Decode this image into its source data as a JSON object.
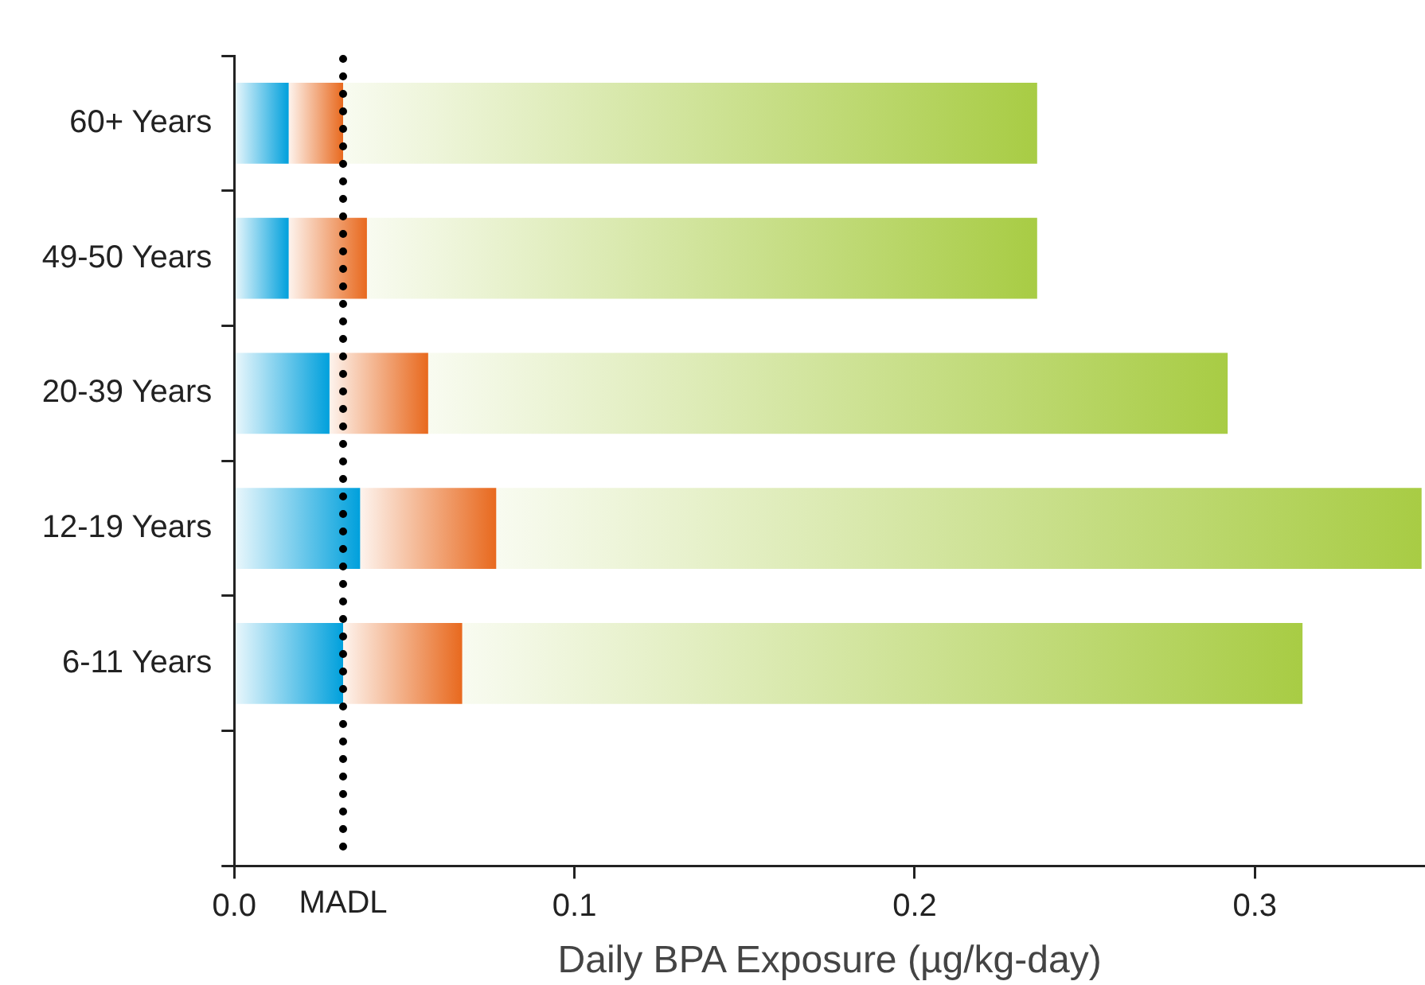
{
  "chart_data": {
    "type": "bar",
    "orientation": "horizontal",
    "stacked": true,
    "categories": [
      "60+ Years",
      "49-50 Years",
      "20-39 Years",
      "12-19 Years",
      "6-11 Years",
      null
    ],
    "series": [
      {
        "color": "#00a0dc",
        "values": [
          0.016,
          0.016,
          0.028,
          0.037,
          0.032,
          null
        ]
      },
      {
        "color": "#e8691e",
        "values": [
          0.016,
          0.023,
          0.029,
          0.04,
          0.035,
          null
        ]
      },
      {
        "color": "#a8cc44",
        "values": [
          0.204,
          0.197,
          0.235,
          0.272,
          0.247,
          null
        ]
      }
    ],
    "xlabel": "Daily BPA Exposure (µg/kg-day)",
    "xlim": [
      0,
      0.35
    ],
    "xticks": [
      {
        "value": 0,
        "label": "0.0"
      },
      0.1,
      0.2,
      0.3
    ],
    "ref_lines": [
      {
        "axis": "x",
        "value": 0.032,
        "label": "MADL",
        "color": "#000000",
        "line_style": "dotted"
      }
    ]
  }
}
